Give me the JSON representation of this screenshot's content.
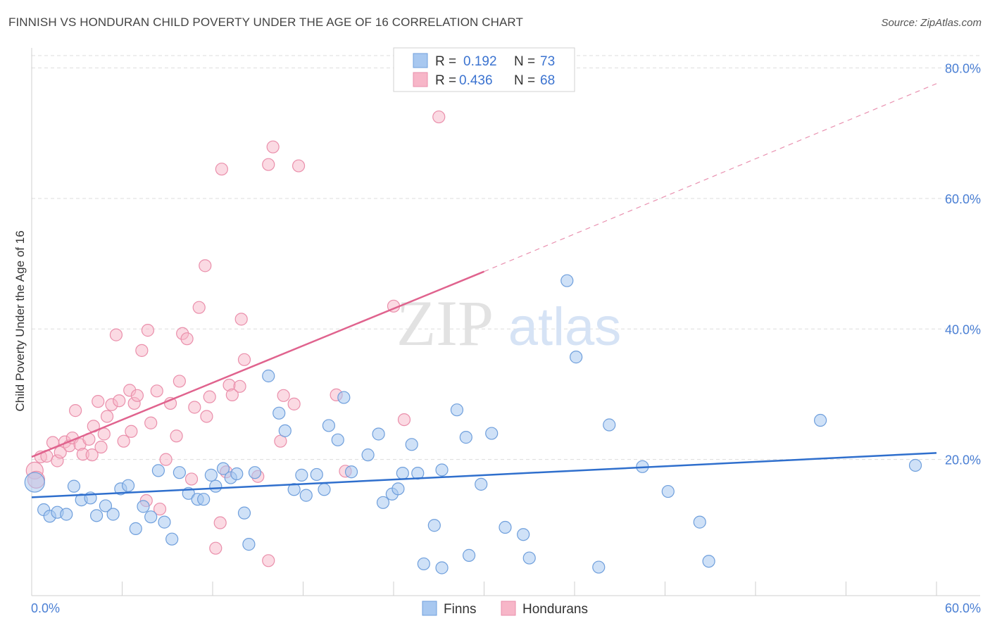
{
  "title": "FINNISH VS HONDURAN CHILD POVERTY UNDER THE AGE OF 16 CORRELATION CHART",
  "source": "Source: ZipAtlas.com",
  "watermark": {
    "zip": "ZIP",
    "atlas": "atlas"
  },
  "colors": {
    "finns_fill": "#a8c8f0",
    "finns_stroke": "#6f9fdc",
    "finns_line": "#2f6fcd",
    "hond_fill": "#f7b6c8",
    "hond_stroke": "#ea8fab",
    "hond_line": "#e0638e",
    "tick_blue": "#4a7fd4",
    "grid": "#dddddd"
  },
  "legend": {
    "rows": [
      {
        "r_label": "R =",
        "r_value": "0.192",
        "n_label": "N =",
        "n_value": "73"
      },
      {
        "r_label": "R =",
        "r_value": "0.436",
        "n_label": "N =",
        "n_value": "68"
      }
    ]
  },
  "chart_data": {
    "type": "scatter",
    "title": "FINNISH VS HONDURAN CHILD POVERTY UNDER THE AGE OF 16 CORRELATION CHART",
    "xlabel": "",
    "ylabel": "Child Poverty Under the Age of 16",
    "xlim": [
      0,
      60
    ],
    "ylim": [
      0,
      82
    ],
    "x_tick_labels": [
      "0.0%",
      "60.0%"
    ],
    "y_ticks": [
      {
        "value": 20,
        "label": "20.0%"
      },
      {
        "value": 40,
        "label": "40.0%"
      },
      {
        "value": 60,
        "label": "60.0%"
      },
      {
        "value": 80,
        "label": "80.0%"
      }
    ],
    "grid": true,
    "legend_position": "top-center",
    "series": [
      {
        "name": "Finns",
        "R": 0.192,
        "N": 73,
        "trend": {
          "x0": 0,
          "y0": 14.2,
          "x1": 60,
          "y1": 21.0
        },
        "points": [
          [
            0.2,
            16.5
          ],
          [
            0.8,
            12.3
          ],
          [
            1.2,
            11.3
          ],
          [
            1.7,
            11.9
          ],
          [
            2.3,
            11.6
          ],
          [
            2.8,
            15.9
          ],
          [
            3.3,
            13.8
          ],
          [
            3.9,
            14.1
          ],
          [
            4.3,
            11.4
          ],
          [
            4.9,
            12.9
          ],
          [
            5.4,
            11.6
          ],
          [
            5.9,
            15.5
          ],
          [
            6.4,
            16.0
          ],
          [
            6.9,
            9.4
          ],
          [
            7.4,
            12.8
          ],
          [
            7.9,
            11.2
          ],
          [
            8.4,
            18.3
          ],
          [
            8.8,
            10.4
          ],
          [
            9.3,
            7.8
          ],
          [
            9.8,
            18.0
          ],
          [
            10.4,
            14.8
          ],
          [
            11.0,
            13.9
          ],
          [
            11.4,
            13.9
          ],
          [
            11.9,
            17.6
          ],
          [
            12.2,
            15.9
          ],
          [
            12.7,
            18.6
          ],
          [
            13.2,
            17.2
          ],
          [
            13.6,
            17.8
          ],
          [
            14.1,
            11.8
          ],
          [
            14.4,
            7.0
          ],
          [
            14.8,
            18.0
          ],
          [
            15.7,
            32.8
          ],
          [
            16.4,
            27.1
          ],
          [
            16.8,
            24.4
          ],
          [
            17.4,
            15.4
          ],
          [
            17.9,
            17.6
          ],
          [
            18.2,
            14.5
          ],
          [
            18.9,
            17.7
          ],
          [
            19.4,
            15.4
          ],
          [
            19.7,
            25.2
          ],
          [
            20.3,
            23.0
          ],
          [
            20.7,
            29.5
          ],
          [
            21.2,
            18.1
          ],
          [
            22.3,
            20.7
          ],
          [
            23.0,
            23.9
          ],
          [
            23.3,
            13.4
          ],
          [
            23.9,
            14.7
          ],
          [
            24.3,
            15.5
          ],
          [
            24.6,
            17.9
          ],
          [
            25.2,
            22.3
          ],
          [
            25.6,
            17.9
          ],
          [
            26.0,
            4.0
          ],
          [
            26.7,
            9.9
          ],
          [
            27.2,
            18.4
          ],
          [
            27.2,
            3.4
          ],
          [
            28.2,
            27.6
          ],
          [
            28.8,
            23.4
          ],
          [
            29.0,
            5.3
          ],
          [
            29.8,
            16.2
          ],
          [
            30.5,
            24.0
          ],
          [
            31.4,
            9.6
          ],
          [
            32.6,
            8.5
          ],
          [
            33.0,
            4.9
          ],
          [
            35.5,
            47.4
          ],
          [
            36.1,
            35.7
          ],
          [
            37.6,
            3.5
          ],
          [
            38.3,
            25.3
          ],
          [
            40.5,
            18.9
          ],
          [
            42.2,
            15.1
          ],
          [
            44.3,
            10.4
          ],
          [
            44.9,
            4.4
          ],
          [
            52.3,
            26.0
          ],
          [
            58.6,
            19.1
          ]
        ]
      },
      {
        "name": "Hondurans",
        "R": 0.436,
        "N": 68,
        "trend": {
          "x0": 0,
          "y0": 20.4,
          "x1": 30,
          "y1": 48.8,
          "dash_to_x": 60,
          "dash_to_y": 77.6
        },
        "points": [
          [
            0.2,
            18.3
          ],
          [
            0.6,
            20.4
          ],
          [
            1.0,
            20.5
          ],
          [
            1.4,
            22.6
          ],
          [
            1.7,
            19.8
          ],
          [
            1.9,
            21.1
          ],
          [
            2.2,
            22.7
          ],
          [
            2.5,
            22.1
          ],
          [
            2.7,
            23.3
          ],
          [
            2.9,
            27.5
          ],
          [
            3.2,
            22.3
          ],
          [
            3.4,
            20.8
          ],
          [
            3.8,
            23.1
          ],
          [
            4.0,
            20.7
          ],
          [
            4.1,
            25.1
          ],
          [
            4.4,
            28.9
          ],
          [
            4.6,
            21.9
          ],
          [
            4.8,
            23.9
          ],
          [
            5.0,
            26.6
          ],
          [
            5.3,
            28.4
          ],
          [
            5.6,
            39.1
          ],
          [
            5.8,
            29.0
          ],
          [
            6.1,
            22.8
          ],
          [
            6.5,
            30.6
          ],
          [
            6.6,
            24.3
          ],
          [
            6.8,
            28.6
          ],
          [
            7.0,
            29.8
          ],
          [
            7.3,
            36.7
          ],
          [
            7.6,
            13.7
          ],
          [
            7.7,
            39.8
          ],
          [
            7.9,
            25.6
          ],
          [
            8.3,
            30.5
          ],
          [
            8.5,
            12.4
          ],
          [
            8.9,
            20.0
          ],
          [
            9.2,
            28.6
          ],
          [
            9.6,
            23.6
          ],
          [
            9.8,
            32.0
          ],
          [
            10.0,
            39.3
          ],
          [
            10.3,
            38.5
          ],
          [
            10.8,
            28.0
          ],
          [
            11.1,
            43.3
          ],
          [
            11.5,
            49.7
          ],
          [
            11.6,
            26.6
          ],
          [
            11.8,
            29.6
          ],
          [
            12.5,
            10.3
          ],
          [
            12.2,
            6.4
          ],
          [
            12.6,
            64.5
          ],
          [
            12.9,
            18.1
          ],
          [
            13.1,
            31.4
          ],
          [
            13.3,
            29.9
          ],
          [
            13.8,
            31.2
          ],
          [
            13.9,
            41.5
          ],
          [
            14.1,
            35.3
          ],
          [
            15.0,
            17.4
          ],
          [
            15.7,
            65.2
          ],
          [
            15.7,
            4.5
          ],
          [
            16.0,
            67.9
          ],
          [
            16.5,
            22.8
          ],
          [
            16.7,
            29.8
          ],
          [
            17.4,
            28.5
          ],
          [
            17.7,
            65.0
          ],
          [
            20.2,
            29.9
          ],
          [
            20.8,
            18.2
          ],
          [
            24.0,
            43.5
          ],
          [
            24.7,
            26.1
          ],
          [
            27.0,
            72.5
          ],
          [
            0.3,
            16.9
          ],
          [
            10.6,
            17.0
          ]
        ]
      }
    ]
  },
  "bottom_legend": {
    "finns": "Finns",
    "hondurans": "Hondurans"
  }
}
